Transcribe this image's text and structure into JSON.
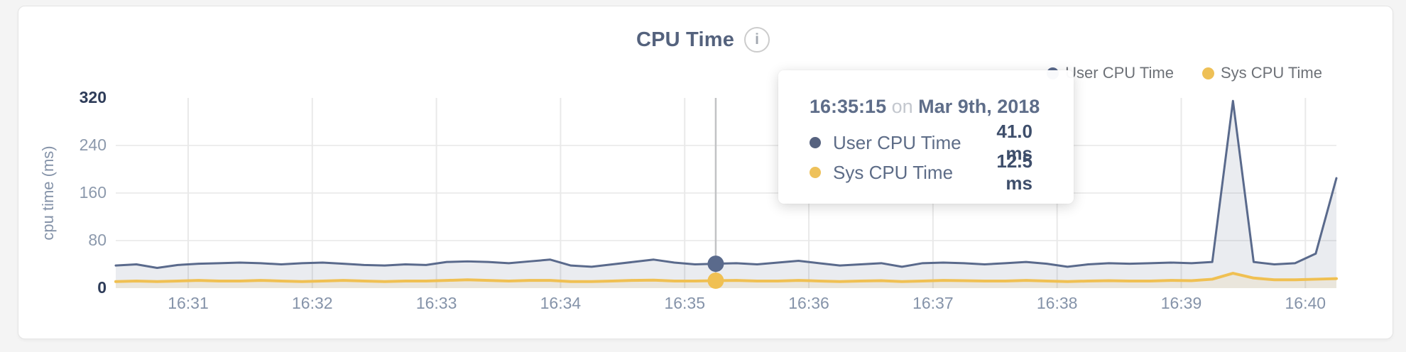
{
  "title": {
    "text": "CPU Time",
    "info_glyph": "i"
  },
  "legend": {
    "items": [
      {
        "label": "User CPU Time",
        "color": "#5a6a8c"
      },
      {
        "label": "Sys CPU Time",
        "color": "#eec056"
      }
    ]
  },
  "tooltip": {
    "time": "16:35:15",
    "connector": "on",
    "date": "Mar 9th, 2018",
    "rows": [
      {
        "label": "User CPU Time",
        "value": "41.0 ms",
        "color": "#56627f"
      },
      {
        "label": "Sys CPU Time",
        "value": "12.5 ms",
        "color": "#eec15a"
      }
    ]
  },
  "chart_data": {
    "type": "area",
    "title": "CPU Time",
    "ylabel": "cpu time (ms)",
    "ylim": [
      0,
      320
    ],
    "yticks": [
      0,
      80,
      160,
      240,
      320
    ],
    "grid_yticks": [
      80,
      160,
      240
    ],
    "grid": true,
    "legend_position": "top-right",
    "xticks": [
      "16:31",
      "16:32",
      "16:33",
      "16:34",
      "16:35",
      "16:36",
      "16:37",
      "16:38",
      "16:39",
      "16:40"
    ],
    "x_times": [
      "16:30:25",
      "16:30:35",
      "16:30:45",
      "16:30:55",
      "16:31:05",
      "16:31:15",
      "16:31:25",
      "16:31:35",
      "16:31:45",
      "16:31:55",
      "16:32:05",
      "16:32:15",
      "16:32:25",
      "16:32:35",
      "16:32:45",
      "16:32:55",
      "16:33:05",
      "16:33:15",
      "16:33:25",
      "16:33:35",
      "16:33:45",
      "16:33:55",
      "16:34:05",
      "16:34:15",
      "16:34:25",
      "16:34:35",
      "16:34:45",
      "16:34:55",
      "16:35:05",
      "16:35:15",
      "16:35:25",
      "16:35:35",
      "16:35:45",
      "16:35:55",
      "16:36:05",
      "16:36:15",
      "16:36:25",
      "16:36:35",
      "16:36:45",
      "16:36:55",
      "16:37:05",
      "16:37:15",
      "16:37:25",
      "16:37:35",
      "16:37:45",
      "16:37:55",
      "16:38:05",
      "16:38:15",
      "16:38:25",
      "16:38:35",
      "16:38:45",
      "16:38:55",
      "16:39:05",
      "16:39:15",
      "16:39:25",
      "16:39:35",
      "16:39:45",
      "16:39:55",
      "16:40:05",
      "16:40:15"
    ],
    "series": [
      {
        "name": "User CPU Time",
        "color": "#5a6a8c",
        "fill": "rgba(90,106,140,0.13)",
        "width": 3,
        "values": [
          38,
          40,
          34,
          39,
          41,
          42,
          43,
          42,
          40,
          42,
          43,
          41,
          39,
          38,
          40,
          39,
          44,
          45,
          44,
          42,
          45,
          48,
          38,
          36,
          40,
          44,
          48,
          43,
          40,
          41,
          42,
          40,
          43,
          46,
          42,
          38,
          40,
          42,
          36,
          42,
          43,
          42,
          40,
          42,
          44,
          41,
          36,
          40,
          42,
          41,
          42,
          43,
          42,
          44,
          315,
          44,
          40,
          42,
          58,
          185
        ]
      },
      {
        "name": "Sys CPU Time",
        "color": "#f0c052",
        "fill": "rgba(240,192,82,0.13)",
        "width": 4,
        "values": [
          11,
          12,
          11,
          12,
          13,
          12,
          12,
          13,
          12,
          11,
          12,
          13,
          12,
          11,
          12,
          12,
          13,
          14,
          13,
          12,
          13,
          13,
          11,
          11,
          12,
          13,
          13.5,
          12,
          12,
          12.5,
          13,
          12,
          12,
          13,
          12,
          11,
          12,
          12.5,
          11,
          12,
          13,
          12.5,
          12,
          12,
          13,
          12,
          11,
          12,
          12.5,
          12,
          12,
          13,
          12.5,
          15,
          25,
          17,
          14,
          14,
          15,
          16
        ]
      }
    ],
    "marker": {
      "time": "16:35:15",
      "index": 29,
      "values": [
        41.0,
        12.5
      ]
    },
    "colors": {
      "grid_h": "#ededed",
      "grid_v": "#e9e9e9",
      "crosshair": "#c2c3c5",
      "tick_strong": "#2e3c59",
      "tick_muted": "#8c99ac"
    }
  }
}
